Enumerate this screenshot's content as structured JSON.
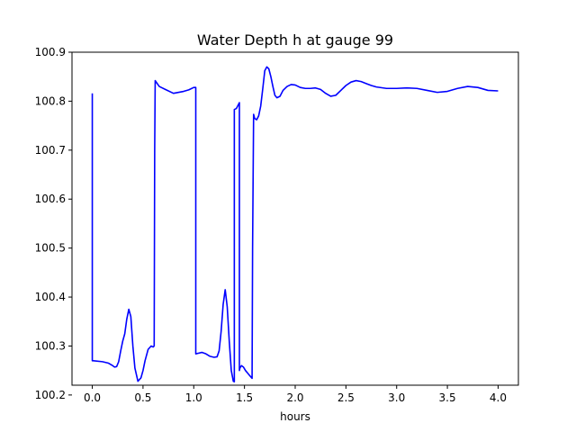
{
  "chart_data": {
    "type": "line",
    "title": "Water Depth h at gauge 99",
    "xlabel": "hours",
    "ylabel": "",
    "xlim": [
      -0.2,
      4.2
    ],
    "ylim": [
      100.22,
      100.9
    ],
    "xticks": [
      0.0,
      0.5,
      1.0,
      1.5,
      2.0,
      2.5,
      3.0,
      3.5,
      4.0
    ],
    "xtick_labels": [
      "0.0",
      "0.5",
      "1.0",
      "1.5",
      "2.0",
      "2.5",
      "3.0",
      "3.5",
      "4.0"
    ],
    "yticks": [
      100.2,
      100.3,
      100.4,
      100.5,
      100.6,
      100.7,
      100.8,
      100.9
    ],
    "ytick_labels": [
      "100.2",
      "100.3",
      "100.4",
      "100.5",
      "100.6",
      "100.7",
      "100.8",
      "100.9"
    ],
    "grid": false,
    "series": [
      {
        "color": "#0000ff",
        "x": [
          0.0,
          0.0,
          0.01,
          0.1,
          0.16,
          0.2,
          0.22,
          0.24,
          0.26,
          0.28,
          0.3,
          0.32,
          0.34,
          0.36,
          0.38,
          0.4,
          0.42,
          0.45,
          0.48,
          0.5,
          0.52,
          0.55,
          0.58,
          0.6,
          0.61,
          0.615,
          0.62,
          0.66,
          0.72,
          0.8,
          0.9,
          0.95,
          1.0,
          1.02,
          1.02,
          1.04,
          1.08,
          1.12,
          1.16,
          1.2,
          1.23,
          1.25,
          1.27,
          1.29,
          1.31,
          1.33,
          1.35,
          1.37,
          1.39,
          1.4,
          1.4,
          1.42,
          1.44,
          1.45,
          1.45,
          1.455,
          1.47,
          1.49,
          1.51,
          1.53,
          1.55,
          1.575,
          1.58,
          1.59,
          1.6,
          1.62,
          1.64,
          1.66,
          1.68,
          1.7,
          1.72,
          1.74,
          1.76,
          1.78,
          1.8,
          1.82,
          1.85,
          1.88,
          1.92,
          1.96,
          2.0,
          2.05,
          2.1,
          2.15,
          2.2,
          2.25,
          2.3,
          2.35,
          2.4,
          2.45,
          2.5,
          2.55,
          2.6,
          2.65,
          2.7,
          2.75,
          2.8,
          2.9,
          3.0,
          3.1,
          3.2,
          3.3,
          3.4,
          3.5,
          3.6,
          3.7,
          3.8,
          3.9,
          4.0
        ],
        "y": [
          100.816,
          100.27,
          100.27,
          100.268,
          100.265,
          100.26,
          100.257,
          100.258,
          100.268,
          100.29,
          100.31,
          100.325,
          100.355,
          100.375,
          100.36,
          100.3,
          100.255,
          100.228,
          100.235,
          100.25,
          100.27,
          100.293,
          100.3,
          100.298,
          100.3,
          100.7,
          100.842,
          100.83,
          100.824,
          100.816,
          100.82,
          100.823,
          100.828,
          100.828,
          100.284,
          100.285,
          100.287,
          100.284,
          100.279,
          100.277,
          100.278,
          100.29,
          100.33,
          100.385,
          100.415,
          100.38,
          100.31,
          100.25,
          100.228,
          100.227,
          100.783,
          100.785,
          100.793,
          100.797,
          100.25,
          100.255,
          100.26,
          100.257,
          100.25,
          100.245,
          100.24,
          100.234,
          100.5,
          100.773,
          100.765,
          100.762,
          100.77,
          100.79,
          100.825,
          100.862,
          100.87,
          100.866,
          100.85,
          100.83,
          100.812,
          100.807,
          100.81,
          100.822,
          100.83,
          100.834,
          100.833,
          100.828,
          100.826,
          100.826,
          100.827,
          100.824,
          100.816,
          100.81,
          100.812,
          100.822,
          100.832,
          100.839,
          100.842,
          100.84,
          100.836,
          100.832,
          100.829,
          100.826,
          100.826,
          100.827,
          100.826,
          100.822,
          100.818,
          100.82,
          100.826,
          100.83,
          100.828,
          100.822,
          100.821
        ]
      }
    ]
  }
}
